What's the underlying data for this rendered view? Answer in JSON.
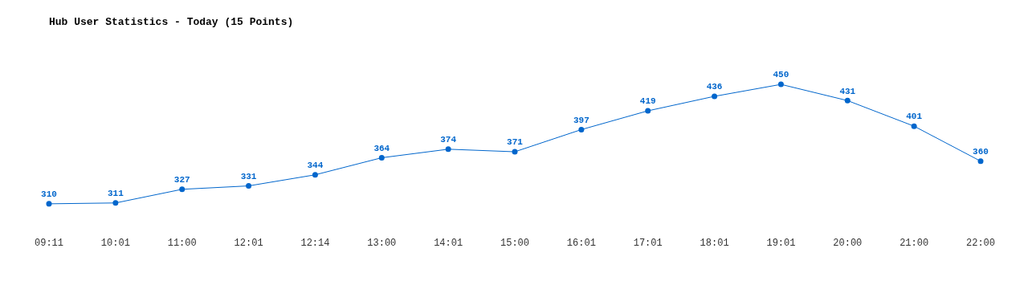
{
  "chart_data": {
    "type": "line",
    "title": "Hub User Statistics - Today (15 Points)",
    "categories": [
      "09:11",
      "10:01",
      "11:00",
      "12:01",
      "12:14",
      "13:00",
      "14:01",
      "15:00",
      "16:01",
      "17:01",
      "18:01",
      "19:01",
      "20:00",
      "21:00",
      "22:00"
    ],
    "series": [
      {
        "color": "#0066cc",
        "values": [
          310,
          311,
          327,
          331,
          344,
          364,
          374,
          371,
          397,
          419,
          436,
          450,
          431,
          401,
          360
        ]
      }
    ],
    "data_labels": true,
    "marker": "circle",
    "line_style": "solid",
    "grid": false,
    "legend": false,
    "tick_labels": "x"
  }
}
